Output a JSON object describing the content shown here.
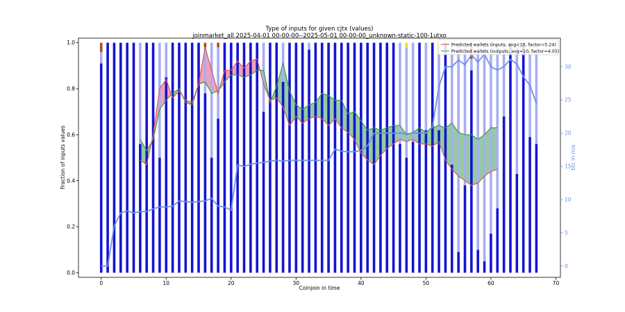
{
  "chart_data": {
    "type": "bar",
    "title": "Type of inputs for given cjtx (values)",
    "subtitle": "joinmarket_all 2025-04-01 00-00-00--2025-05-01 00-00-00_unknown-static-100-1utxo",
    "xlabel": "Coinjoin in time",
    "ylabel": "Fraction of inputs values",
    "y2label": "btc in mix",
    "xlim": [
      -3.5,
      70.7
    ],
    "ylim": [
      -0.02,
      1.02
    ],
    "y2lim": [
      -1.7,
      34.3
    ],
    "xticks": [
      "0",
      "10",
      "20",
      "30",
      "40",
      "50",
      "60",
      "70"
    ],
    "yticks": [
      "0.0",
      "0.2",
      "0.4",
      "0.6",
      "0.8",
      "1.0"
    ],
    "y2ticks": [
      "0",
      "5",
      "10",
      "15",
      "20",
      "25",
      "30"
    ],
    "legend_placement": "top-right",
    "legend": [
      {
        "label": "Predicted wallets (inputs, avg=10, factor=5.24)",
        "color": "#e8675b"
      },
      {
        "label": "Predicted wallets (outputs, avg=10, factor=4.05)",
        "color": "#5cb85c"
      }
    ],
    "colors": {
      "fresh": "#1414d2",
      "remix": "#a8aef2",
      "gold": "#f5dc28",
      "brown": "#a0522d",
      "btc_line": "#6e8ee6",
      "inputs_line": "#d85a5a",
      "inputs_fill": "#f27a95",
      "outputs_line": "#3d9a3d",
      "outputs_fill": "#6ab87a"
    },
    "bars": {
      "fresh": [
        0.91,
        1,
        1,
        1,
        1,
        1,
        0.56,
        1,
        1,
        0.5,
        0.85,
        1,
        1,
        1,
        1,
        1,
        0.78,
        0.5,
        0.67,
        1,
        1,
        1,
        1,
        1,
        1,
        0.7,
        1,
        1,
        0.83,
        1,
        1,
        1,
        0.97,
        1,
        1,
        1,
        1,
        1,
        1,
        1,
        1,
        1,
        1,
        1,
        1,
        1,
        0.56,
        0.5,
        0.57,
        1,
        0.62,
        1,
        0.62,
        1,
        0.47,
        0.09,
        0.38,
        0.88,
        0.1,
        0.05,
        0.17,
        0.28,
        0.68,
        1,
        0.43,
        1,
        0.59,
        0.56
      ],
      "remix": [
        0.05,
        0,
        0,
        0,
        0,
        0,
        0.44,
        0,
        0,
        0.5,
        0.15,
        0,
        0,
        0,
        0,
        0,
        0.2,
        0.5,
        0.31,
        0,
        0,
        0,
        0,
        0,
        0,
        0.3,
        0,
        0,
        0.17,
        0,
        0,
        0,
        0.03,
        0,
        0,
        0,
        0,
        0,
        0,
        0,
        0,
        0,
        0,
        0,
        0,
        0,
        0.44,
        0.48,
        0.43,
        0,
        0.38,
        0,
        0.33,
        0,
        0.53,
        0.91,
        0.62,
        0.05,
        0.9,
        0.95,
        0.83,
        0.72,
        0.32,
        0,
        0.57,
        0,
        0.37,
        0.44
      ],
      "gold": [
        0,
        0,
        0,
        0,
        0,
        0,
        0,
        0,
        0,
        0,
        0,
        0,
        0,
        0,
        0,
        0,
        0,
        0,
        0,
        0,
        0,
        0,
        0,
        0,
        0,
        0,
        0,
        0,
        0,
        0,
        0,
        0,
        0,
        0,
        0,
        0,
        0,
        0,
        0,
        0,
        0,
        0,
        0,
        0,
        0,
        0,
        0,
        0.02,
        0,
        0,
        0,
        0,
        0.05,
        0,
        0,
        0,
        0,
        0,
        0,
        0,
        0,
        0,
        0,
        0,
        0,
        0,
        0.04,
        0
      ],
      "brown": [
        0.04,
        0,
        0,
        0,
        0,
        0,
        0,
        0,
        0,
        0,
        0,
        0,
        0,
        0,
        0,
        0,
        0.02,
        0,
        0.02,
        0,
        0,
        0,
        0,
        0,
        0,
        0,
        0,
        0,
        0,
        0,
        0,
        0,
        0,
        0,
        0,
        0,
        0,
        0,
        0,
        0,
        0,
        0,
        0,
        0,
        0,
        0,
        0,
        0,
        0,
        0,
        0,
        0,
        0,
        0,
        0,
        0,
        0,
        0.07,
        0,
        0,
        0,
        0,
        0,
        0,
        0,
        0,
        0,
        0
      ]
    },
    "btc_in_mix": [
      0,
      0,
      6,
      8,
      8.3,
      8,
      8.2,
      8.2,
      8.6,
      8.9,
      8.9,
      9,
      9.8,
      9.7,
      9.6,
      9.7,
      9.8,
      10.2,
      9,
      8.9,
      8.4,
      15.2,
      15,
      15.3,
      15.5,
      15.6,
      15.8,
      15.9,
      15.8,
      15.9,
      15.9,
      15.9,
      15.9,
      15.9,
      15.9,
      15.9,
      17.6,
      17.3,
      17.2,
      17.2,
      17.4,
      18.1,
      20,
      20,
      20,
      20,
      20,
      19.9,
      20,
      20,
      20,
      21,
      27,
      30,
      30,
      31,
      30.3,
      31.8,
      30.7,
      31.9,
      30,
      29.5,
      30,
      31.1,
      30.4,
      28.5,
      27.2,
      24.5
    ],
    "predicted_inputs": {
      "x": [
        6,
        7,
        8,
        9,
        10,
        11,
        12,
        13,
        14,
        15,
        16,
        17,
        18,
        19,
        20,
        21,
        22,
        23,
        24,
        25,
        26,
        27,
        28,
        29,
        30,
        31,
        32,
        33,
        34,
        35,
        36,
        37,
        38,
        39,
        40,
        41,
        42,
        43,
        44,
        45,
        46,
        47,
        48,
        49,
        50,
        51,
        52,
        53,
        54,
        55,
        56,
        57,
        58,
        59,
        60,
        61
      ],
      "values": [
        0.49,
        0.47,
        0.6,
        0.8,
        0.84,
        0.76,
        0.79,
        0.75,
        0.74,
        0.82,
        0.98,
        0.88,
        0.78,
        0.88,
        0.88,
        0.92,
        0.89,
        0.92,
        0.93,
        0.82,
        0.75,
        0.76,
        0.72,
        0.64,
        0.68,
        0.65,
        0.67,
        0.68,
        0.67,
        0.64,
        0.67,
        0.63,
        0.61,
        0.58,
        0.52,
        0.49,
        0.47,
        0.51,
        0.54,
        0.56,
        0.58,
        0.57,
        0.58,
        0.56,
        0.56,
        0.55,
        0.57,
        0.49,
        0.45,
        0.42,
        0.4,
        0.38,
        0.39,
        0.42,
        0.44,
        0.45
      ]
    },
    "predicted_outputs": {
      "x": [
        6,
        7,
        8,
        9,
        10,
        11,
        12,
        13,
        14,
        15,
        16,
        17,
        18,
        19,
        20,
        21,
        22,
        23,
        24,
        25,
        26,
        27,
        28,
        29,
        30,
        31,
        32,
        33,
        34,
        35,
        36,
        37,
        38,
        39,
        40,
        41,
        42,
        43,
        44,
        45,
        46,
        47,
        48,
        49,
        50,
        51,
        52,
        53,
        54,
        55,
        56,
        57,
        58,
        59,
        60,
        61
      ],
      "values": [
        0.58,
        0.53,
        0.58,
        0.71,
        0.75,
        0.78,
        0.8,
        0.74,
        0.73,
        0.82,
        0.83,
        0.78,
        0.79,
        0.83,
        0.86,
        0.86,
        0.85,
        0.86,
        0.88,
        0.88,
        0.74,
        0.81,
        0.91,
        0.79,
        0.73,
        0.71,
        0.73,
        0.74,
        0.78,
        0.77,
        0.75,
        0.75,
        0.69,
        0.7,
        0.66,
        0.62,
        0.63,
        0.62,
        0.63,
        0.64,
        0.64,
        0.6,
        0.61,
        0.63,
        0.61,
        0.63,
        0.64,
        0.63,
        0.65,
        0.61,
        0.6,
        0.6,
        0.58,
        0.6,
        0.63,
        0.63
      ]
    }
  }
}
